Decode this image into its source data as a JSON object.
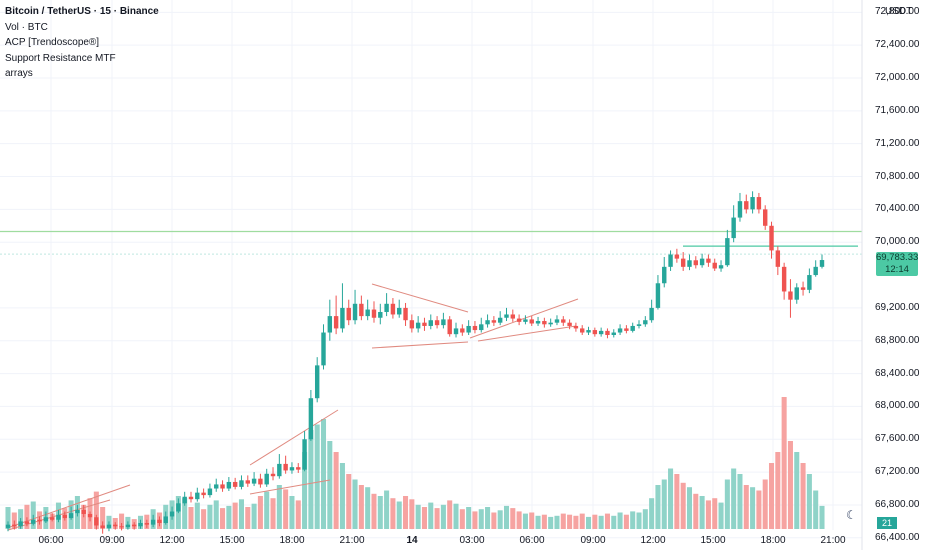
{
  "legend": {
    "title": "Bitcoin / TetherUS · 15 · Binance",
    "vol": "Vol · BTC",
    "acp": "ACP [Trendoscope®]",
    "srmtf": "Support Resistance MTF",
    "arrays": "arrays"
  },
  "price_axis": {
    "unit": "USDT",
    "labels": [
      "72,800.00",
      "72,400.00",
      "72,000.00",
      "71,600.00",
      "71,200.00",
      "70,800.00",
      "70,400.00",
      "70,000.00",
      "69,200.00",
      "68,800.00",
      "68,400.00",
      "68,000.00",
      "67,600.00",
      "67,200.00",
      "66,800.00",
      "66,400.00"
    ]
  },
  "last_price": {
    "price": "69,783.33",
    "countdown": "12:14"
  },
  "volume_tag": "21",
  "colors": {
    "up": "#26a69a",
    "down": "#ef5350",
    "up_vol": "#8fd3c8",
    "down_vol": "#f6a3a1",
    "sr_line": "#9fdc9f",
    "last_line": "#4cc9a4",
    "pattern": "#e08a80",
    "gray_vol": "#c9ced6"
  },
  "chart_data": {
    "type": "candlestick",
    "symbol": "Bitcoin / TetherUS",
    "interval": "15",
    "exchange": "Binance",
    "x_ticks": [
      "06:00",
      "09:00",
      "12:00",
      "15:00",
      "18:00",
      "21:00",
      "14",
      "03:00",
      "06:00",
      "09:00",
      "12:00",
      "15:00",
      "18:00",
      "21:00"
    ],
    "ylim": [
      66300,
      72950
    ],
    "support_resistance_levels": [
      70130,
      69855
    ],
    "last_price": 69783.33,
    "candles": [
      {
        "o": 66520,
        "c": 66560,
        "h": 66600,
        "l": 66480,
        "v": 20
      },
      {
        "o": 66560,
        "c": 66540,
        "h": 66610,
        "l": 66500,
        "v": 15
      },
      {
        "o": 66540,
        "c": 66600,
        "h": 66640,
        "l": 66510,
        "v": 18
      },
      {
        "o": 66600,
        "c": 66570,
        "h": 66650,
        "l": 66540,
        "v": 22
      },
      {
        "o": 66570,
        "c": 66620,
        "h": 66680,
        "l": 66550,
        "v": 25
      },
      {
        "o": 66620,
        "c": 66600,
        "h": 66660,
        "l": 66560,
        "v": 16
      },
      {
        "o": 66600,
        "c": 66650,
        "h": 66720,
        "l": 66580,
        "v": 20
      },
      {
        "o": 66650,
        "c": 66620,
        "h": 66700,
        "l": 66600,
        "v": 14
      },
      {
        "o": 66620,
        "c": 66680,
        "h": 66740,
        "l": 66590,
        "v": 24
      },
      {
        "o": 66680,
        "c": 66640,
        "h": 66720,
        "l": 66610,
        "v": 19
      },
      {
        "o": 66640,
        "c": 66700,
        "h": 66780,
        "l": 66620,
        "v": 26
      },
      {
        "o": 66700,
        "c": 66740,
        "h": 66800,
        "l": 66660,
        "v": 30
      },
      {
        "o": 66740,
        "c": 66690,
        "h": 66800,
        "l": 66650,
        "v": 22
      },
      {
        "o": 66690,
        "c": 66650,
        "h": 66720,
        "l": 66600,
        "v": 28
      },
      {
        "o": 66650,
        "c": 66550,
        "h": 66680,
        "l": 66500,
        "v": 34
      },
      {
        "o": 66550,
        "c": 66520,
        "h": 66600,
        "l": 66450,
        "v": 20
      },
      {
        "o": 66520,
        "c": 66560,
        "h": 66600,
        "l": 66480,
        "v": 12
      },
      {
        "o": 66560,
        "c": 66540,
        "h": 66590,
        "l": 66500,
        "v": 10
      },
      {
        "o": 66540,
        "c": 66530,
        "h": 66580,
        "l": 66490,
        "v": 14
      },
      {
        "o": 66530,
        "c": 66560,
        "h": 66600,
        "l": 66500,
        "v": 11
      },
      {
        "o": 66560,
        "c": 66540,
        "h": 66590,
        "l": 66500,
        "v": 9
      },
      {
        "o": 66540,
        "c": 66580,
        "h": 66620,
        "l": 66510,
        "v": 12
      },
      {
        "o": 66580,
        "c": 66560,
        "h": 66620,
        "l": 66520,
        "v": 13
      },
      {
        "o": 66560,
        "c": 66620,
        "h": 66680,
        "l": 66530,
        "v": 18
      },
      {
        "o": 66620,
        "c": 66580,
        "h": 66660,
        "l": 66540,
        "v": 15
      },
      {
        "o": 66580,
        "c": 66660,
        "h": 66720,
        "l": 66560,
        "v": 22
      },
      {
        "o": 66660,
        "c": 66720,
        "h": 66780,
        "l": 66620,
        "v": 26
      },
      {
        "o": 66720,
        "c": 66820,
        "h": 66880,
        "l": 66700,
        "v": 30
      },
      {
        "o": 66820,
        "c": 66900,
        "h": 66960,
        "l": 66790,
        "v": 28
      },
      {
        "o": 66900,
        "c": 66870,
        "h": 66960,
        "l": 66830,
        "v": 20
      },
      {
        "o": 66870,
        "c": 66950,
        "h": 67010,
        "l": 66840,
        "v": 24
      },
      {
        "o": 66950,
        "c": 66920,
        "h": 67000,
        "l": 66880,
        "v": 18
      },
      {
        "o": 66920,
        "c": 67000,
        "h": 67060,
        "l": 66890,
        "v": 22
      },
      {
        "o": 67000,
        "c": 67050,
        "h": 67120,
        "l": 66960,
        "v": 26
      },
      {
        "o": 67050,
        "c": 67000,
        "h": 67100,
        "l": 66960,
        "v": 19
      },
      {
        "o": 67000,
        "c": 67080,
        "h": 67140,
        "l": 66970,
        "v": 21
      },
      {
        "o": 67080,
        "c": 67020,
        "h": 67130,
        "l": 66990,
        "v": 24
      },
      {
        "o": 67020,
        "c": 67100,
        "h": 67160,
        "l": 66990,
        "v": 27
      },
      {
        "o": 67100,
        "c": 67060,
        "h": 67160,
        "l": 67020,
        "v": 20
      },
      {
        "o": 67060,
        "c": 67120,
        "h": 67200,
        "l": 67030,
        "v": 23
      },
      {
        "o": 67120,
        "c": 67050,
        "h": 67180,
        "l": 67010,
        "v": 30
      },
      {
        "o": 67050,
        "c": 67180,
        "h": 67240,
        "l": 67020,
        "v": 34
      },
      {
        "o": 67180,
        "c": 67150,
        "h": 67260,
        "l": 67100,
        "v": 28
      },
      {
        "o": 67150,
        "c": 67300,
        "h": 67420,
        "l": 67120,
        "v": 40
      },
      {
        "o": 67300,
        "c": 67220,
        "h": 67400,
        "l": 67180,
        "v": 36
      },
      {
        "o": 67220,
        "c": 67260,
        "h": 67320,
        "l": 67180,
        "v": 30
      },
      {
        "o": 67260,
        "c": 67230,
        "h": 67310,
        "l": 67190,
        "v": 26
      },
      {
        "o": 67230,
        "c": 67600,
        "h": 67700,
        "l": 67210,
        "v": 70
      },
      {
        "o": 67600,
        "c": 68100,
        "h": 68200,
        "l": 67580,
        "v": 90
      },
      {
        "o": 68100,
        "c": 68500,
        "h": 68600,
        "l": 68050,
        "v": 95
      },
      {
        "o": 68500,
        "c": 68900,
        "h": 69000,
        "l": 68450,
        "v": 100
      },
      {
        "o": 68900,
        "c": 69100,
        "h": 69300,
        "l": 68800,
        "v": 80
      },
      {
        "o": 69100,
        "c": 68950,
        "h": 69350,
        "l": 68880,
        "v": 70
      },
      {
        "o": 68950,
        "c": 69200,
        "h": 69500,
        "l": 68900,
        "v": 60
      },
      {
        "o": 69200,
        "c": 69050,
        "h": 69300,
        "l": 68990,
        "v": 50
      },
      {
        "o": 69050,
        "c": 69250,
        "h": 69420,
        "l": 69000,
        "v": 45
      },
      {
        "o": 69250,
        "c": 69100,
        "h": 69350,
        "l": 69050,
        "v": 40
      },
      {
        "o": 69100,
        "c": 69180,
        "h": 69300,
        "l": 69050,
        "v": 38
      },
      {
        "o": 69180,
        "c": 69080,
        "h": 69280,
        "l": 69020,
        "v": 32
      },
      {
        "o": 69080,
        "c": 69150,
        "h": 69250,
        "l": 69000,
        "v": 30
      },
      {
        "o": 69150,
        "c": 69250,
        "h": 69380,
        "l": 69100,
        "v": 35
      },
      {
        "o": 69250,
        "c": 69120,
        "h": 69320,
        "l": 69070,
        "v": 28
      },
      {
        "o": 69120,
        "c": 69200,
        "h": 69300,
        "l": 69080,
        "v": 25
      },
      {
        "o": 69200,
        "c": 69050,
        "h": 69260,
        "l": 68980,
        "v": 30
      },
      {
        "o": 69050,
        "c": 68950,
        "h": 69120,
        "l": 68900,
        "v": 27
      },
      {
        "o": 68950,
        "c": 69020,
        "h": 69100,
        "l": 68900,
        "v": 22
      },
      {
        "o": 69020,
        "c": 68980,
        "h": 69080,
        "l": 68920,
        "v": 20
      },
      {
        "o": 68980,
        "c": 69050,
        "h": 69120,
        "l": 68940,
        "v": 24
      },
      {
        "o": 69050,
        "c": 68990,
        "h": 69100,
        "l": 68950,
        "v": 19
      },
      {
        "o": 68990,
        "c": 69060,
        "h": 69140,
        "l": 68950,
        "v": 22
      },
      {
        "o": 69060,
        "c": 68880,
        "h": 69100,
        "l": 68850,
        "v": 26
      },
      {
        "o": 68880,
        "c": 68950,
        "h": 69020,
        "l": 68840,
        "v": 23
      },
      {
        "o": 68950,
        "c": 68900,
        "h": 69000,
        "l": 68860,
        "v": 18
      },
      {
        "o": 68900,
        "c": 68980,
        "h": 69050,
        "l": 68870,
        "v": 20
      },
      {
        "o": 68980,
        "c": 68930,
        "h": 69040,
        "l": 68890,
        "v": 16
      },
      {
        "o": 68930,
        "c": 69000,
        "h": 69080,
        "l": 68900,
        "v": 18
      },
      {
        "o": 69000,
        "c": 69050,
        "h": 69120,
        "l": 68960,
        "v": 20
      },
      {
        "o": 69050,
        "c": 69020,
        "h": 69100,
        "l": 68980,
        "v": 15
      },
      {
        "o": 69020,
        "c": 69080,
        "h": 69160,
        "l": 68990,
        "v": 17
      },
      {
        "o": 69080,
        "c": 69120,
        "h": 69200,
        "l": 69040,
        "v": 21
      },
      {
        "o": 69120,
        "c": 69070,
        "h": 69180,
        "l": 69030,
        "v": 19
      },
      {
        "o": 69070,
        "c": 69030,
        "h": 69120,
        "l": 68990,
        "v": 16
      },
      {
        "o": 69030,
        "c": 69060,
        "h": 69110,
        "l": 69000,
        "v": 14
      },
      {
        "o": 69060,
        "c": 69010,
        "h": 69100,
        "l": 68980,
        "v": 15
      },
      {
        "o": 69010,
        "c": 69040,
        "h": 69090,
        "l": 68980,
        "v": 12
      },
      {
        "o": 69040,
        "c": 69000,
        "h": 69080,
        "l": 68960,
        "v": 13
      },
      {
        "o": 69000,
        "c": 69020,
        "h": 69070,
        "l": 68970,
        "v": 11
      },
      {
        "o": 69020,
        "c": 69060,
        "h": 69110,
        "l": 68990,
        "v": 12
      },
      {
        "o": 69060,
        "c": 69020,
        "h": 69100,
        "l": 68980,
        "v": 14
      },
      {
        "o": 69020,
        "c": 68980,
        "h": 69060,
        "l": 68940,
        "v": 13
      },
      {
        "o": 68980,
        "c": 68950,
        "h": 69020,
        "l": 68910,
        "v": 12
      },
      {
        "o": 68950,
        "c": 68900,
        "h": 68990,
        "l": 68870,
        "v": 14
      },
      {
        "o": 68900,
        "c": 68930,
        "h": 68970,
        "l": 68870,
        "v": 11
      },
      {
        "o": 68930,
        "c": 68880,
        "h": 68960,
        "l": 68850,
        "v": 13
      },
      {
        "o": 68880,
        "c": 68920,
        "h": 68960,
        "l": 68850,
        "v": 12
      },
      {
        "o": 68920,
        "c": 68870,
        "h": 68950,
        "l": 68830,
        "v": 14
      },
      {
        "o": 68870,
        "c": 68900,
        "h": 68940,
        "l": 68840,
        "v": 12
      },
      {
        "o": 68900,
        "c": 68950,
        "h": 69000,
        "l": 68870,
        "v": 15
      },
      {
        "o": 68950,
        "c": 68920,
        "h": 68990,
        "l": 68890,
        "v": 13
      },
      {
        "o": 68920,
        "c": 68980,
        "h": 69020,
        "l": 68900,
        "v": 16
      },
      {
        "o": 68980,
        "c": 69000,
        "h": 69050,
        "l": 68950,
        "v": 15
      },
      {
        "o": 69000,
        "c": 69050,
        "h": 69100,
        "l": 68970,
        "v": 18
      },
      {
        "o": 69050,
        "c": 69200,
        "h": 69300,
        "l": 69020,
        "v": 28
      },
      {
        "o": 69200,
        "c": 69500,
        "h": 69600,
        "l": 69180,
        "v": 40
      },
      {
        "o": 69500,
        "c": 69700,
        "h": 69820,
        "l": 69450,
        "v": 45
      },
      {
        "o": 69700,
        "c": 69850,
        "h": 69900,
        "l": 69650,
        "v": 55
      },
      {
        "o": 69850,
        "c": 69800,
        "h": 69920,
        "l": 69750,
        "v": 50
      },
      {
        "o": 69800,
        "c": 69700,
        "h": 69880,
        "l": 69650,
        "v": 42
      },
      {
        "o": 69700,
        "c": 69780,
        "h": 69850,
        "l": 69660,
        "v": 38
      },
      {
        "o": 69780,
        "c": 69720,
        "h": 69830,
        "l": 69680,
        "v": 32
      },
      {
        "o": 69720,
        "c": 69800,
        "h": 69860,
        "l": 69690,
        "v": 30
      },
      {
        "o": 69800,
        "c": 69750,
        "h": 69850,
        "l": 69700,
        "v": 26
      },
      {
        "o": 69750,
        "c": 69680,
        "h": 69800,
        "l": 69650,
        "v": 28
      },
      {
        "o": 69680,
        "c": 69720,
        "h": 69780,
        "l": 69640,
        "v": 24
      },
      {
        "o": 69720,
        "c": 70050,
        "h": 70150,
        "l": 69700,
        "v": 45
      },
      {
        "o": 70050,
        "c": 70300,
        "h": 70450,
        "l": 70000,
        "v": 55
      },
      {
        "o": 70300,
        "c": 70500,
        "h": 70600,
        "l": 70250,
        "v": 50
      },
      {
        "o": 70500,
        "c": 70400,
        "h": 70580,
        "l": 70350,
        "v": 40
      },
      {
        "o": 70400,
        "c": 70550,
        "h": 70620,
        "l": 70350,
        "v": 38
      },
      {
        "o": 70550,
        "c": 70400,
        "h": 70600,
        "l": 70350,
        "v": 35
      },
      {
        "o": 70400,
        "c": 70200,
        "h": 70450,
        "l": 70150,
        "v": 45
      },
      {
        "o": 70200,
        "c": 69900,
        "h": 70250,
        "l": 69800,
        "v": 60
      },
      {
        "o": 69900,
        "c": 69700,
        "h": 69950,
        "l": 69600,
        "v": 70
      },
      {
        "o": 69700,
        "c": 69400,
        "h": 69750,
        "l": 69300,
        "v": 120
      },
      {
        "o": 69400,
        "c": 69300,
        "h": 69550,
        "l": 69080,
        "v": 80
      },
      {
        "o": 69300,
        "c": 69450,
        "h": 69500,
        "l": 69250,
        "v": 70
      },
      {
        "o": 69450,
        "c": 69420,
        "h": 69520,
        "l": 69350,
        "v": 60
      },
      {
        "o": 69420,
        "c": 69600,
        "h": 69680,
        "l": 69380,
        "v": 50
      },
      {
        "o": 69600,
        "c": 69700,
        "h": 69780,
        "l": 69580,
        "v": 35
      },
      {
        "o": 69700,
        "c": 69783,
        "h": 69850,
        "l": 69680,
        "v": 21
      }
    ]
  }
}
